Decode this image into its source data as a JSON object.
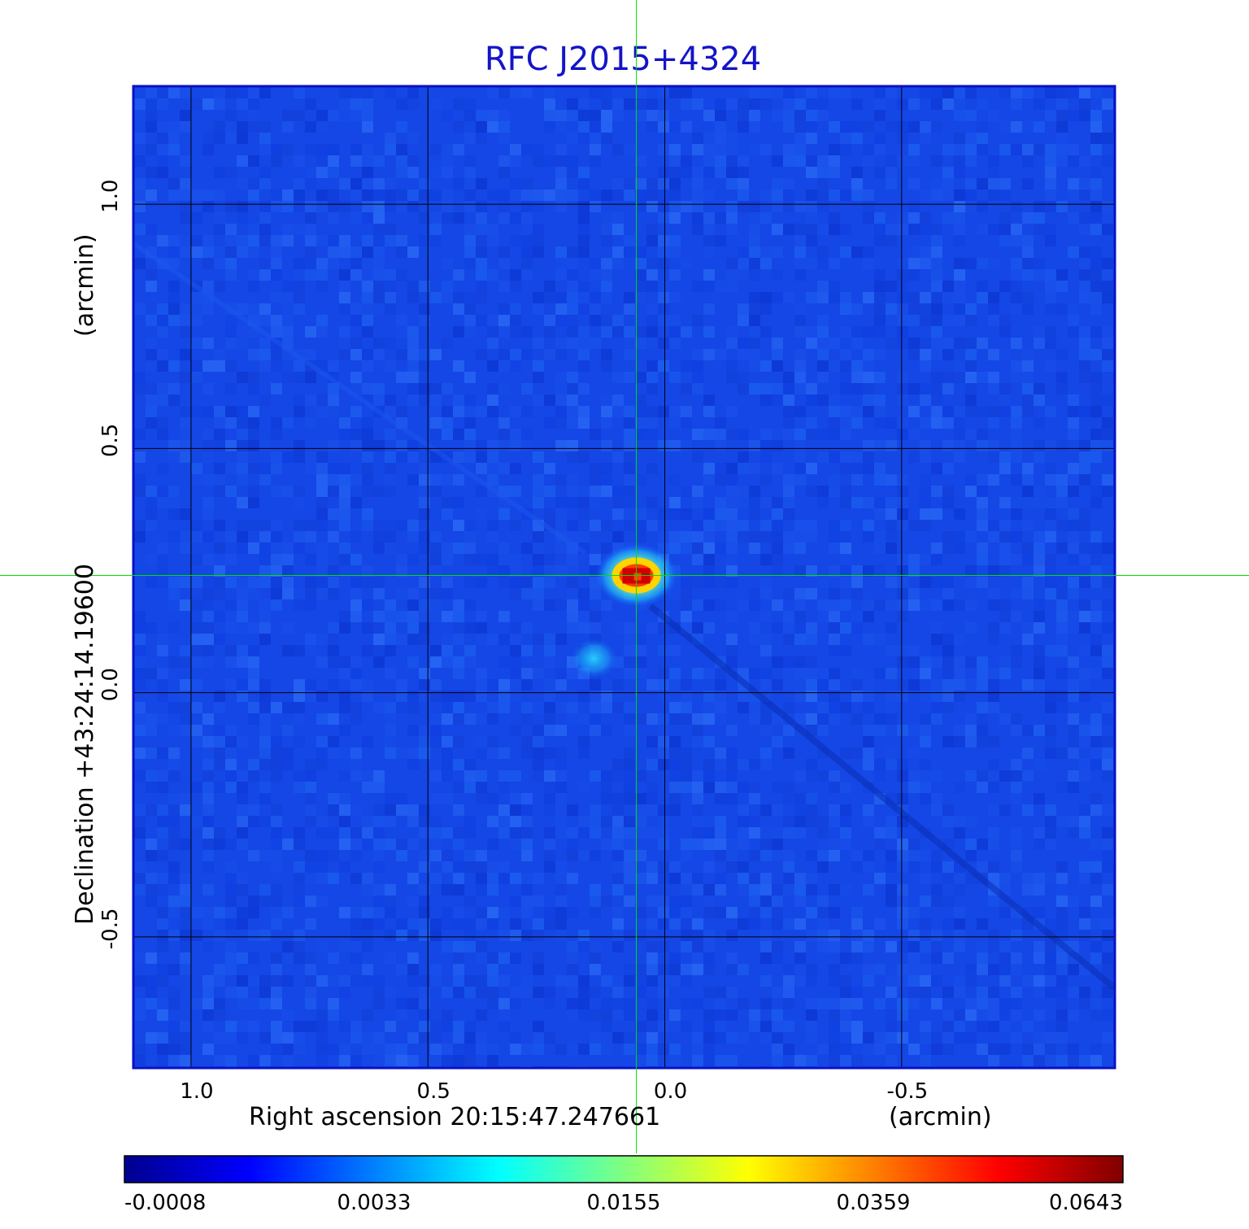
{
  "chart_data": {
    "type": "heatmap",
    "title": "RFC J2015+4324",
    "xlabel": "Right ascension  20:15:47.247661",
    "x_unit": "(arcmin)",
    "ylabel": "Declination  +43:24:14.19600",
    "y_unit": "(arcmin)",
    "x_range": [
      1.12,
      -0.95
    ],
    "y_range": [
      -0.77,
      1.24
    ],
    "x_ticks": [
      1.0,
      0.5,
      0.0,
      -0.5
    ],
    "x_tick_labels": [
      "1.0",
      "0.5",
      "0.0",
      "-0.5"
    ],
    "y_ticks": [
      1.0,
      0.5,
      0.0,
      -0.5
    ],
    "y_tick_labels": [
      "1.0",
      "0.5",
      "0.0",
      "-0.5"
    ],
    "grid": true,
    "crosshair": {
      "x": 0.06,
      "y": 0.24
    },
    "sources": [
      {
        "x": 0.06,
        "y": 0.24,
        "peak": 0.0643
      },
      {
        "x": 0.15,
        "y": 0.07,
        "peak": 0.012
      }
    ],
    "colorbar": {
      "tick_labels": [
        "-0.0008",
        "0.0033",
        "0.0155",
        "0.0359",
        "0.0643"
      ],
      "colormap": [
        "#00008f",
        "#0000ff",
        "#0080ff",
        "#00ffff",
        "#80ff80",
        "#ffff00",
        "#ff8000",
        "#ff0000",
        "#800000"
      ]
    },
    "colors": {
      "background": "#1447e6",
      "frame": "#0a10c8",
      "grid": "#000000",
      "crosshair": "#00e000"
    }
  }
}
